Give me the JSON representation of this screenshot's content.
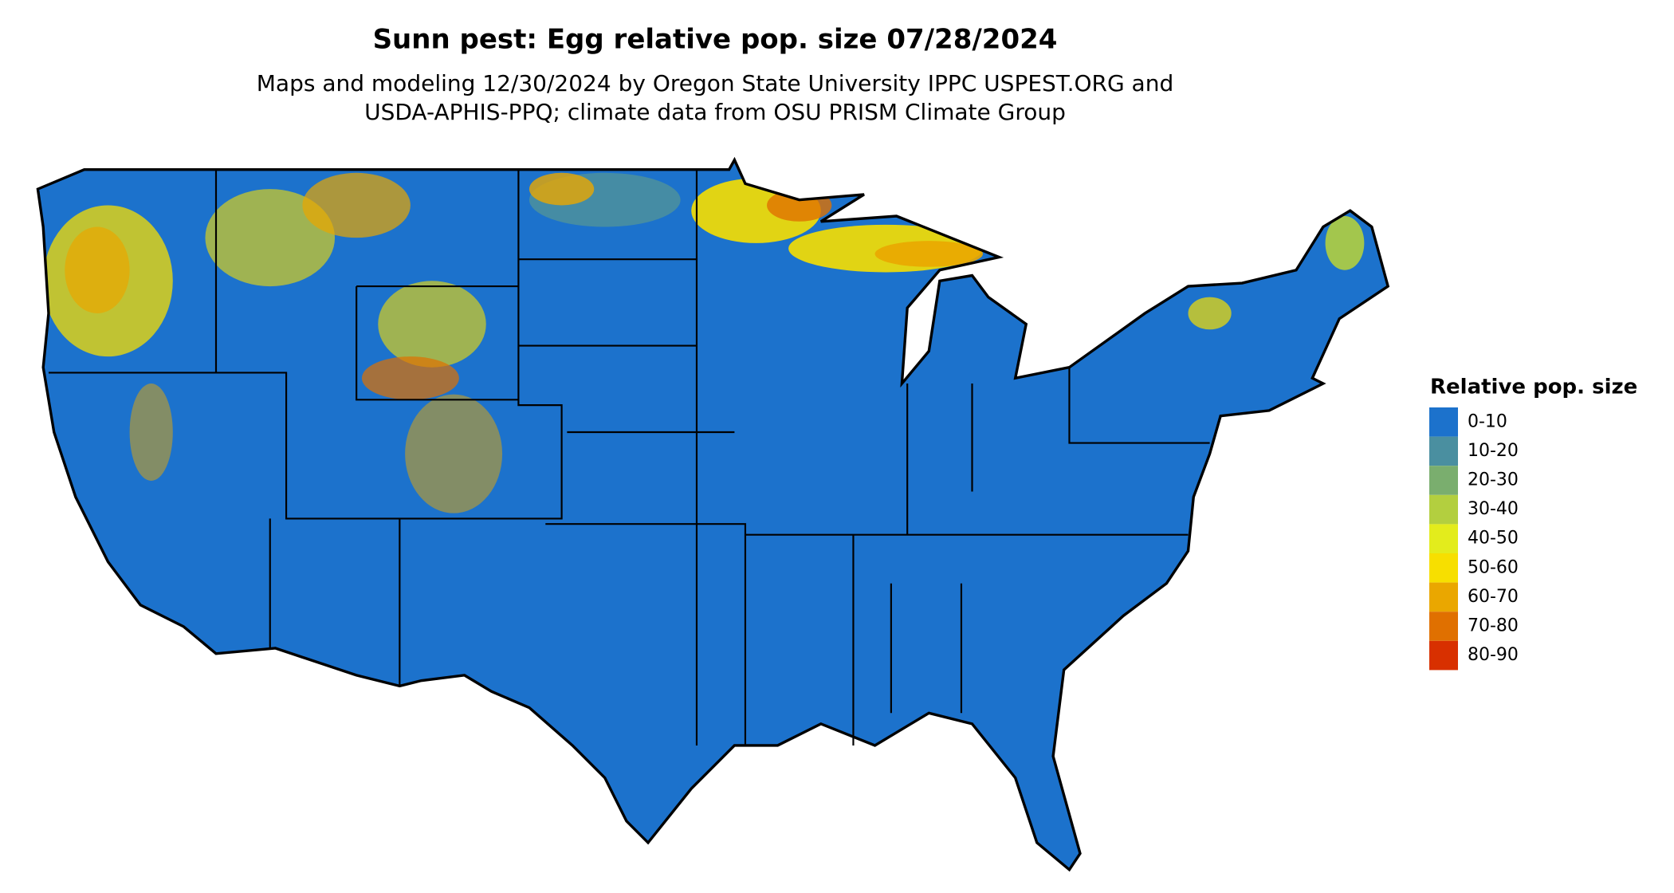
{
  "header": {
    "title": "Sunn pest: Egg relative pop. size 07/28/2024",
    "subtitle_lines": [
      "Maps and modeling 12/30/2024 by Oregon State University IPPC USPEST.ORG and",
      "USDA-APHIS-PPQ; climate data from OSU PRISM Climate Group"
    ]
  },
  "legend": {
    "title": "Relative pop. size",
    "items": [
      {
        "label": "0-10",
        "color": "#1c72cc"
      },
      {
        "label": "10-20",
        "color": "#4a8fa0"
      },
      {
        "label": "20-30",
        "color": "#7aae6e"
      },
      {
        "label": "30-40",
        "color": "#b3cf3f"
      },
      {
        "label": "40-50",
        "color": "#e3ec1c"
      },
      {
        "label": "50-60",
        "color": "#f7df00"
      },
      {
        "label": "60-70",
        "color": "#eaa700"
      },
      {
        "label": "70-80",
        "color": "#e07000"
      },
      {
        "label": "80-90",
        "color": "#d83000"
      }
    ]
  }
}
